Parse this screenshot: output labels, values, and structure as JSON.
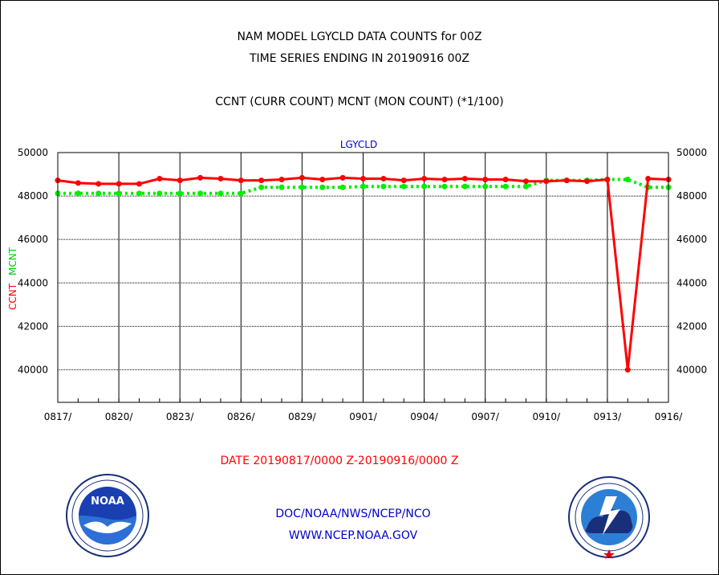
{
  "header": {
    "title": "NAM MODEL LGYCLD DATA COUNTS for 00Z",
    "subtitle": "TIME SERIES ENDING IN 20190916 00Z",
    "description": "CCNT (CURR COUNT) MCNT (MON COUNT) (*1/100)"
  },
  "footer": {
    "date_range": "DATE 20190817/0000 Z-20190916/0000 Z",
    "credit_org": "DOC/NOAA/NWS/NCEP/NCO",
    "credit_url": "WWW.NCEP.NOAA.GOV"
  },
  "logos": {
    "left": "noaa-logo",
    "left_text": "NOAA",
    "right": "nws-logo"
  },
  "chart_data": {
    "type": "line",
    "title": "LGYCLD",
    "ylabel_left": "CCNT",
    "ylabel_right": "MCNT",
    "ylim": [
      38500,
      50000
    ],
    "yticks": [
      40000,
      42000,
      44000,
      46000,
      48000,
      50000
    ],
    "xlim": [
      0,
      30
    ],
    "xticks": [
      0,
      3,
      6,
      9,
      12,
      15,
      18,
      21,
      24,
      27,
      30
    ],
    "xtick_labels": [
      "0817/",
      "0820/",
      "0823/",
      "0826/",
      "0829/",
      "0901/",
      "0904/",
      "0907/",
      "0910/",
      "0913/",
      "0916/"
    ],
    "grid": true,
    "series": [
      {
        "name": "CCNT",
        "color": "#ff0000",
        "style": "solid",
        "x": [
          0,
          1,
          2,
          3,
          4,
          5,
          6,
          7,
          8,
          9,
          10,
          11,
          12,
          13,
          14,
          15,
          16,
          17,
          18,
          19,
          20,
          21,
          22,
          23,
          24,
          25,
          26,
          27,
          28,
          29,
          30
        ],
        "values": [
          48720,
          48600,
          48560,
          48560,
          48560,
          48800,
          48720,
          48840,
          48800,
          48720,
          48720,
          48760,
          48840,
          48760,
          48840,
          48800,
          48800,
          48720,
          48800,
          48760,
          48800,
          48760,
          48760,
          48680,
          48680,
          48720,
          48680,
          48760,
          40000,
          48800,
          48760
        ]
      },
      {
        "name": "MCNT",
        "color": "#00ee00",
        "style": "dotted",
        "x": [
          0,
          1,
          2,
          3,
          4,
          5,
          6,
          7,
          8,
          9,
          10,
          11,
          12,
          13,
          14,
          15,
          16,
          17,
          18,
          19,
          20,
          21,
          22,
          23,
          24,
          25,
          26,
          27,
          28,
          29,
          30
        ],
        "values": [
          48120,
          48120,
          48120,
          48120,
          48120,
          48120,
          48120,
          48120,
          48120,
          48120,
          48400,
          48400,
          48400,
          48400,
          48400,
          48440,
          48440,
          48440,
          48440,
          48440,
          48440,
          48440,
          48440,
          48440,
          48720,
          48720,
          48720,
          48760,
          48760,
          48400,
          48400
        ]
      }
    ]
  }
}
